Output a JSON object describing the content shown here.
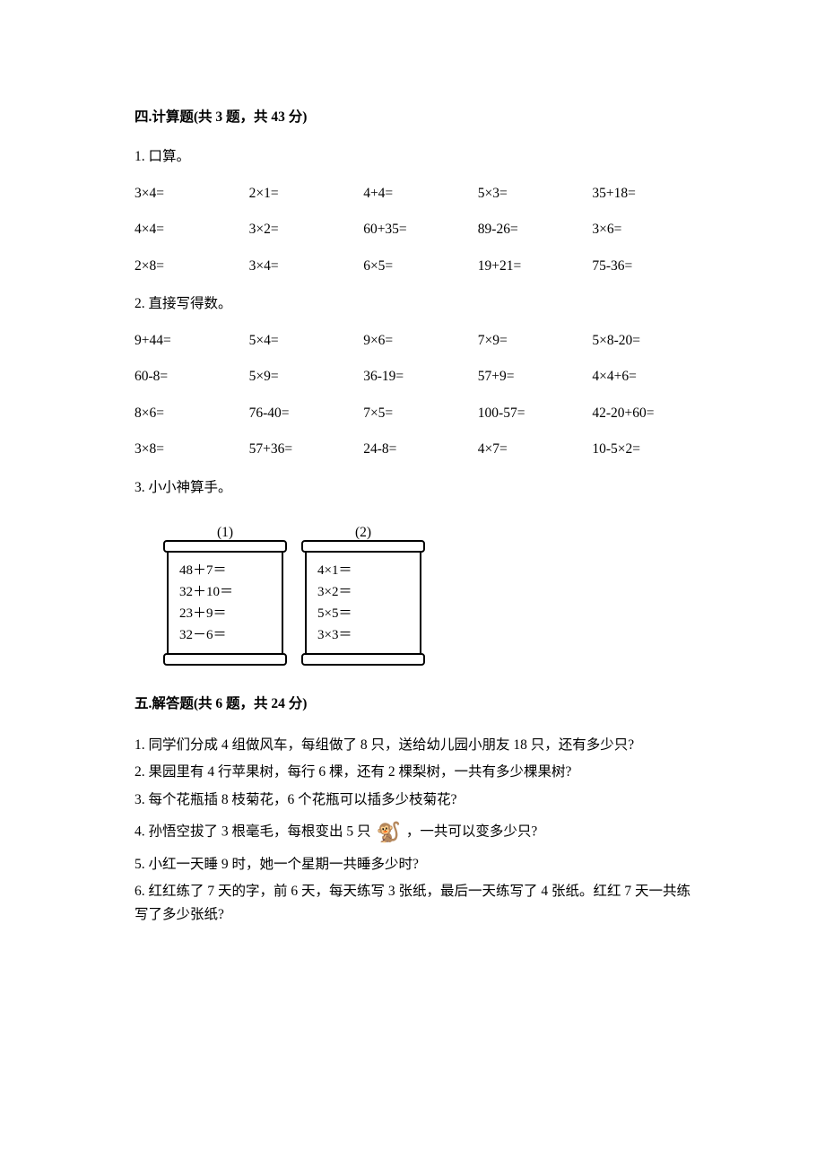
{
  "section4": {
    "title": "四.计算题(共 3 题，共 43 分)",
    "q1": {
      "prompt": "1. 口算。",
      "cells": [
        "3×4=",
        "2×1=",
        "4+4=",
        "5×3=",
        "35+18=",
        "4×4=",
        "3×2=",
        "60+35=",
        "89-26=",
        "3×6=",
        "2×8=",
        "3×4=",
        "6×5=",
        "19+21=",
        "75-36="
      ]
    },
    "q2": {
      "prompt": "2. 直接写得数。",
      "cells": [
        "9+44=",
        "5×4=",
        "9×6=",
        "7×9=",
        "5×8-20=",
        "60-8=",
        "5×9=",
        "36-19=",
        "57+9=",
        "4×4+6=",
        "8×6=",
        "76-40=",
        "7×5=",
        "100-57=",
        "42-20+60=",
        "3×8=",
        "57+36=",
        "24-8=",
        "4×7=",
        "10-5×2="
      ]
    },
    "q3": {
      "prompt": "3. 小小神算手。",
      "scrolls": [
        {
          "label": "(1)",
          "lines": [
            "48＋7＝",
            "32＋10＝",
            "23＋9＝",
            "32－6＝"
          ]
        },
        {
          "label": "(2)",
          "lines": [
            "4×1＝",
            "3×2＝",
            "5×5＝",
            "3×3＝"
          ]
        }
      ]
    }
  },
  "section5": {
    "title": "五.解答题(共 6 题，共 24 分)",
    "items": [
      "1. 同学们分成 4 组做风车，每组做了 8 只，送给幼儿园小朋友 18 只，还有多少只?",
      "2. 果园里有 4 行苹果树，每行 6 棵，还有 2 棵梨树，一共有多少棵果树?",
      "3. 每个花瓶插 8 枝菊花，6 个花瓶可以插多少枝菊花?",
      {
        "pre": "4. 孙悟空拔了 3 根毫毛，每根变出 5 只",
        "icon": "🐒",
        "post": "，一共可以变多少只?"
      },
      "5. 小红一天睡 9 时，她一个星期一共睡多少时?",
      "6. 红红练了 7 天的字，前 6 天，每天练写 3 张纸，最后一天练写了 4 张纸。红红 7 天一共练写了多少张纸?"
    ]
  },
  "icons": {
    "monkey": "🐒"
  }
}
